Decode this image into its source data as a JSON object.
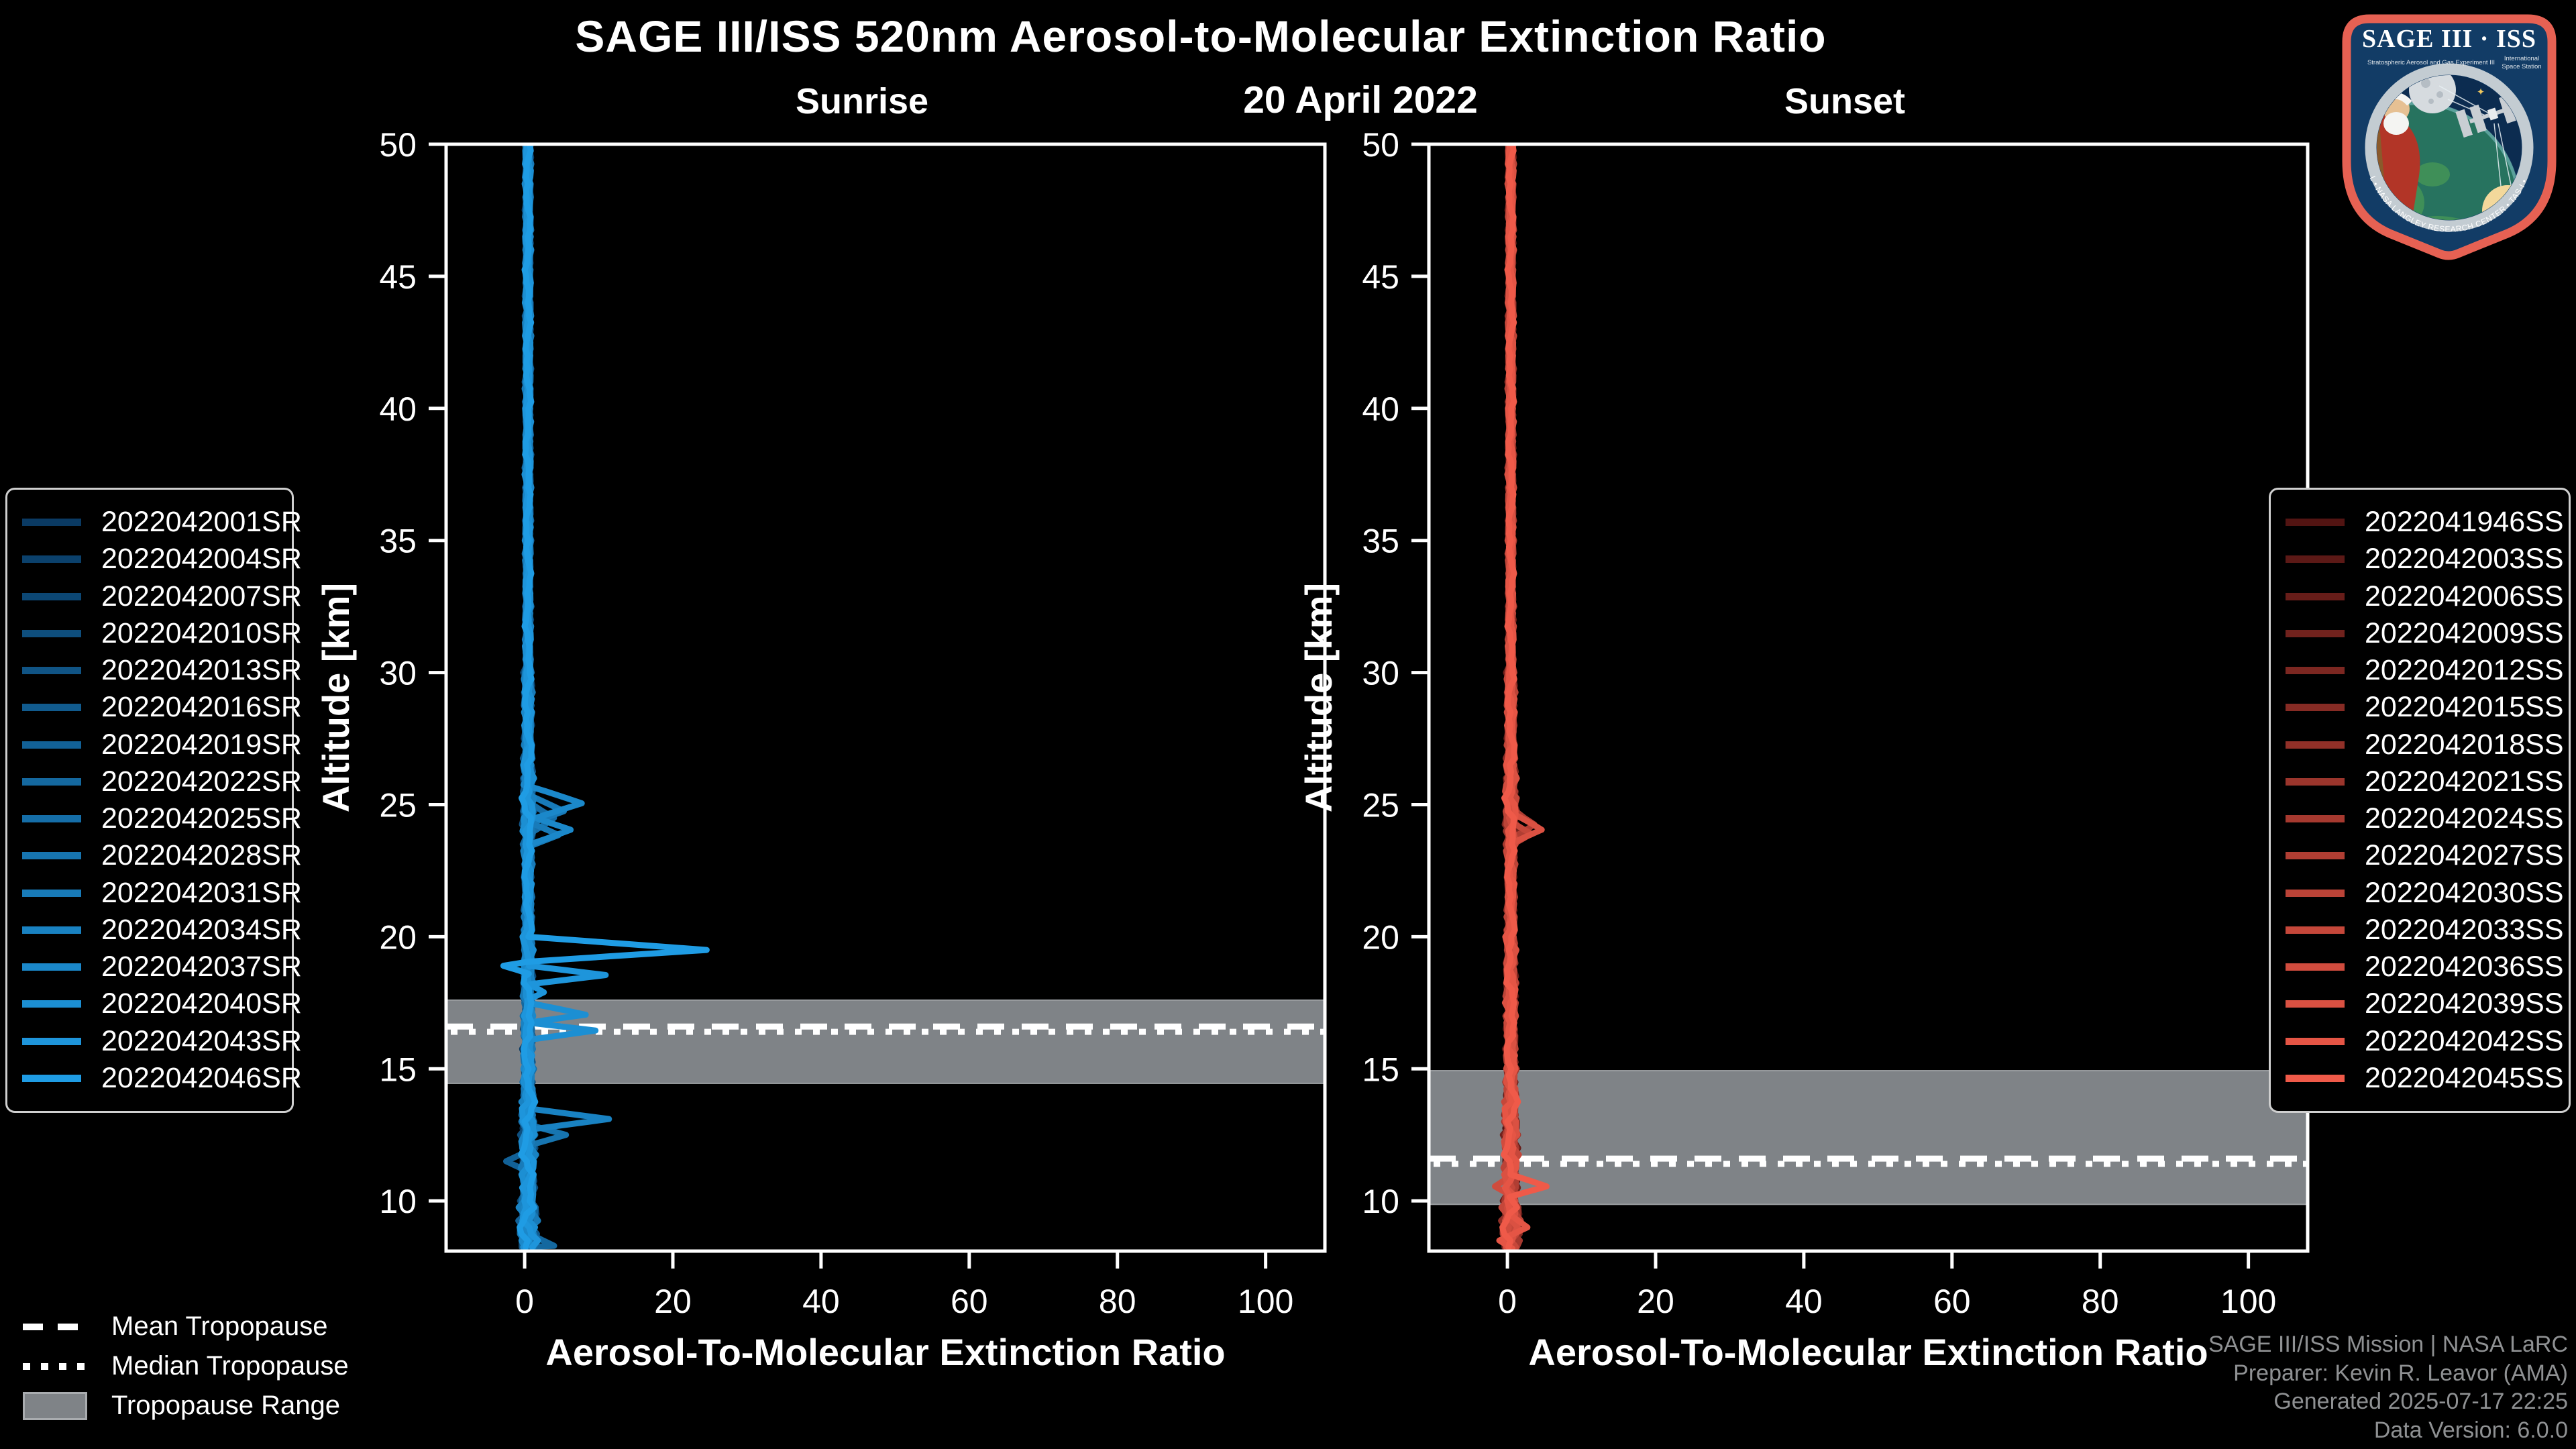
{
  "header": {
    "title": "SAGE III/ISS 520nm Aerosol-to-Molecular Extinction Ratio",
    "date": "20 April 2022"
  },
  "chart_data": [
    {
      "type": "line",
      "title": "Sunrise",
      "xlabel": "Aerosol-To-Molecular Extinction Ratio",
      "ylabel": "Altitude [km]",
      "xlim": [
        -10.6,
        108
      ],
      "ylim": [
        8.1,
        50
      ],
      "x_ticks": [
        0,
        20,
        40,
        60,
        80,
        100
      ],
      "y_ticks": [
        10,
        15,
        20,
        25,
        30,
        35,
        40,
        45,
        50
      ],
      "grid": false,
      "legend_position": "outside-left",
      "baseline": {
        "center": 0.45,
        "note": "all 16 profiles cluster near ratio 0-2 at all altitudes"
      },
      "tropopause": {
        "mean": 16.6,
        "median": 16.4,
        "range": [
          14.45,
          17.6
        ]
      },
      "series": [
        {
          "name": "2022042001SR",
          "color": "#0a3a63"
        },
        {
          "name": "2022042004SR",
          "color": "#0b416c"
        },
        {
          "name": "2022042007SR",
          "color": "#0c4774"
        },
        {
          "name": "2022042010SR",
          "color": "#0e4e7d"
        },
        {
          "name": "2022042013SR",
          "color": "#105485"
        },
        {
          "name": "2022042016SR",
          "color": "#115b8e"
        },
        {
          "name": "2022042019SR",
          "color": "#126197"
        },
        {
          "name": "2022042022SR",
          "color": "#14689f"
        },
        {
          "name": "2022042025SR",
          "color": "#156ea8"
        },
        {
          "name": "2022042028SR",
          "color": "#1775b0"
        },
        {
          "name": "2022042031SR",
          "color": "#187bb9"
        },
        {
          "name": "2022042034SR",
          "color": "#1982c2"
        },
        {
          "name": "2022042037SR",
          "color": "#1b88ca"
        },
        {
          "name": "2022042040SR",
          "color": "#1c8fd3"
        },
        {
          "name": "2022042043SR",
          "color": "#1e95db"
        },
        {
          "name": "2022042046SR",
          "color": "#1f9ce4"
        }
      ],
      "features": {
        "8": [
          [
            25.1,
            0.4
          ],
          [
            24.5,
            4.0
          ],
          [
            23.9,
            0.7
          ]
        ],
        "10": [
          [
            25.4,
            0.5
          ],
          [
            24.75,
            5.2
          ],
          [
            24.3,
            1.0
          ],
          [
            23.85,
            4.5
          ],
          [
            23.4,
            0.6
          ]
        ],
        "12": [
          [
            25.7,
            0.6
          ],
          [
            25.05,
            7.8
          ],
          [
            24.5,
            1.4
          ],
          [
            24.05,
            6.3
          ],
          [
            23.5,
            0.7
          ]
        ],
        "15": [
          [
            20.0,
            0.6
          ],
          [
            19.5,
            24.5
          ],
          [
            19.05,
            0.4
          ],
          [
            18.9,
            -2.9
          ],
          [
            18.6,
            0.5
          ]
        ],
        "14": [
          [
            18.9,
            0.5
          ],
          [
            18.55,
            11.0
          ],
          [
            18.2,
            0.6
          ],
          [
            17.9,
            2.5
          ],
          [
            17.6,
            0.5
          ]
        ],
        "13": [
          [
            17.5,
            0.5
          ],
          [
            17.05,
            8.2
          ],
          [
            16.75,
            0.6
          ],
          [
            16.45,
            9.5
          ],
          [
            16.1,
            0.5
          ]
        ],
        "11": [
          [
            13.5,
            0.6
          ],
          [
            13.1,
            11.3
          ],
          [
            12.7,
            0.7
          ]
        ],
        "9": [
          [
            12.9,
            0.5
          ],
          [
            12.5,
            5.5
          ],
          [
            12.1,
            0.6
          ]
        ],
        "6": [
          [
            11.9,
            0.4
          ],
          [
            11.5,
            -2.4
          ],
          [
            11.1,
            0.5
          ]
        ],
        "7": [
          [
            8.8,
            0.5
          ],
          [
            8.3,
            3.9
          ]
        ]
      }
    },
    {
      "type": "line",
      "title": "Sunset",
      "xlabel": "Aerosol-To-Molecular Extinction Ratio",
      "ylabel": "Altitude [km]",
      "xlim": [
        -10.6,
        108
      ],
      "ylim": [
        8.1,
        50
      ],
      "x_ticks": [
        0,
        20,
        40,
        60,
        80,
        100
      ],
      "y_ticks": [
        10,
        15,
        20,
        25,
        30,
        35,
        40,
        45,
        50
      ],
      "grid": false,
      "legend_position": "outside-right",
      "baseline": {
        "center": 0.45,
        "note": "all 16 profiles cluster near ratio 0-2 at all altitudes"
      },
      "tropopause": {
        "mean": 11.6,
        "median": 11.4,
        "range": [
          9.87,
          14.93
        ]
      },
      "series": [
        {
          "name": "2022041946SS",
          "color": "#521412"
        },
        {
          "name": "2022042003SS",
          "color": "#5c1916"
        },
        {
          "name": "2022042006SS",
          "color": "#671d19"
        },
        {
          "name": "2022042009SS",
          "color": "#71221d"
        },
        {
          "name": "2022042012SS",
          "color": "#7c2721"
        },
        {
          "name": "2022042015SS",
          "color": "#862b24"
        },
        {
          "name": "2022042018SS",
          "color": "#913028"
        },
        {
          "name": "2022042021SS",
          "color": "#9b352c"
        },
        {
          "name": "2022042024SS",
          "color": "#a6392f"
        },
        {
          "name": "2022042027SS",
          "color": "#b03e33"
        },
        {
          "name": "2022042030SS",
          "color": "#bb4337"
        },
        {
          "name": "2022042033SS",
          "color": "#c5473a"
        },
        {
          "name": "2022042036SS",
          "color": "#d04c3e"
        },
        {
          "name": "2022042039SS",
          "color": "#da5142"
        },
        {
          "name": "2022042042SS",
          "color": "#e55545"
        },
        {
          "name": "2022042045SS",
          "color": "#ef5a49"
        }
      ],
      "features": {
        "13": [
          [
            24.7,
            0.5
          ],
          [
            24.05,
            4.7
          ],
          [
            23.55,
            0.6
          ]
        ],
        "11": [
          [
            24.4,
            0.4
          ],
          [
            23.9,
            3.1
          ],
          [
            23.45,
            0.5
          ]
        ],
        "9": [
          [
            24.9,
            0.4
          ],
          [
            24.25,
            3.6
          ],
          [
            23.7,
            0.5
          ]
        ],
        "15": [
          [
            11.0,
            0.5
          ],
          [
            10.55,
            5.2
          ],
          [
            10.15,
            0.4
          ]
        ],
        "12": [
          [
            10.9,
            0.3
          ],
          [
            10.55,
            -1.6
          ],
          [
            10.2,
            0.4
          ]
        ],
        "14": [
          [
            9.5,
            0.4
          ],
          [
            9.0,
            2.6
          ],
          [
            8.5,
            -1.0
          ],
          [
            8.2,
            0.6
          ]
        ]
      }
    }
  ],
  "style": {
    "background": "#000000",
    "axis_color": "#ffffff",
    "tropopause_band_color": "#7f8387",
    "tropopause_band_edge": "#9a9da0",
    "tropopause_line_color": "#ffffff"
  },
  "tropo_legend": {
    "mean_label": "Mean Tropopause",
    "median_label": "Median Tropopause",
    "range_label": "Tropopause Range"
  },
  "footer": {
    "lines": [
      "SAGE III/ISS Mission | NASA LaRC",
      "Preparer: Kevin R. Leavor (AMA)",
      "Generated 2025-07-17 22:25",
      "Data Version: 6.0.0"
    ]
  },
  "logo": {
    "title": "SAGE III · ISS",
    "subtitle_left": "Stratospheric Aerosol and Gas Experiment III",
    "sub_right_1": "International",
    "sub_right_2": "Space Station",
    "ring_text": "BALL • NASA LANGLEY RESEARCH CENTER • TAS-I • ESA",
    "border_color": "#e66153",
    "field_color": "#123c66",
    "ring_color": "#c3ccd2"
  }
}
